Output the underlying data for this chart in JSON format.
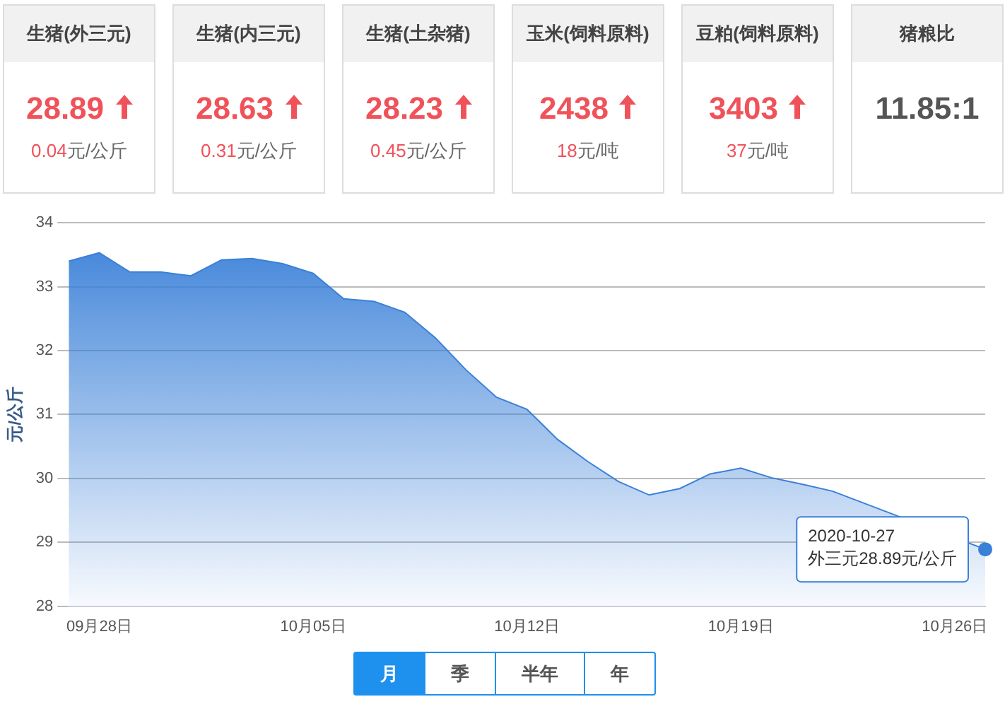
{
  "chart_data": [
    {
      "type": "other",
      "categories": [
        "生猪(外三元)",
        "生猪(内三元)",
        "生猪(土杂猪)",
        "玉米(饲料原料)",
        "豆粕(饲料原料)",
        "猪粮比"
      ],
      "value_labels": [
        "28.89",
        "28.63",
        "28.23",
        "2438",
        "3403",
        "11.85:1"
      ],
      "annotations": [
        "0.04元/公斤",
        "0.31元/公斤",
        "0.45元/公斤",
        "18元/吨",
        "37元/吨"
      ]
    },
    {
      "type": "area",
      "ylabel": "元/公斤",
      "color": "#3a80d8",
      "x": [
        "2020-09-27",
        "2020-09-28",
        "2020-09-29",
        "2020-09-30",
        "2020-10-01",
        "2020-10-02",
        "2020-10-03",
        "2020-10-04",
        "2020-10-05",
        "2020-10-06",
        "2020-10-07",
        "2020-10-08",
        "2020-10-09",
        "2020-10-10",
        "2020-10-11",
        "2020-10-12",
        "2020-10-13",
        "2020-10-14",
        "2020-10-15",
        "2020-10-16",
        "2020-10-17",
        "2020-10-18",
        "2020-10-19",
        "2020-10-20",
        "2020-10-21",
        "2020-10-22",
        "2020-10-23",
        "2020-10-24",
        "2020-10-25",
        "2020-10-26",
        "2020-10-27"
      ],
      "values": [
        33.4,
        33.53,
        33.23,
        33.23,
        33.17,
        33.42,
        33.44,
        33.36,
        33.21,
        32.81,
        32.77,
        32.6,
        32.2,
        31.7,
        31.27,
        31.08,
        30.61,
        30.26,
        29.95,
        29.74,
        29.84,
        30.07,
        30.16,
        30.01,
        29.91,
        29.8,
        null,
        null,
        null,
        null,
        28.89
      ],
      "xlim": [
        "2020-09-27",
        "2020-10-27"
      ],
      "xticks": [
        {
          "value": "2020-09-28",
          "label": "09月28日"
        },
        {
          "value": "2020-10-05",
          "label": "10月05日"
        },
        {
          "value": "2020-10-12",
          "label": "10月12日"
        },
        {
          "value": "2020-10-19",
          "label": "10月19日"
        },
        {
          "value": "2020-10-26",
          "label": "10月26日"
        }
      ],
      "ylim": [
        28,
        34
      ],
      "yticks": [
        28,
        29,
        30,
        31,
        32,
        33,
        34
      ],
      "grid": "y",
      "legend": false,
      "annotations": [
        {
          "text": "2020-10-27\n外三元28.89元/公斤",
          "x": "2020-10-27",
          "y": 28.89
        },
        "月",
        "季",
        "半年",
        "年"
      ]
    }
  ]
}
